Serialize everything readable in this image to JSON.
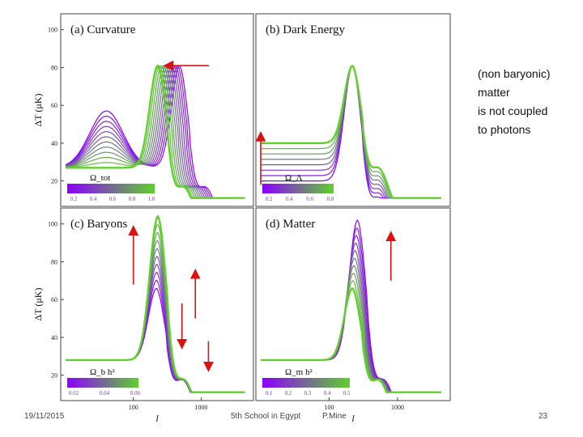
{
  "slide": {
    "note_lines": [
      "(non baryonic)",
      "matter",
      "is not coupled",
      "to photons"
    ],
    "footer_date": "19/11/2015",
    "footer_event": "5th School in Egypt",
    "footer_author": "P.Mine",
    "page_number": "23"
  },
  "colors": {
    "start": "#8b00ff",
    "end": "#5fd02c",
    "arrow": "#dd1111"
  },
  "chart_data": [
    {
      "type": "line",
      "panel": "top-left",
      "title": "(a) Curvature",
      "ylabel": "ΔT (μK)",
      "xlabel": "",
      "ylim": [
        10,
        105
      ],
      "xlim": [
        10,
        5000
      ],
      "yticks": [
        "20",
        "40",
        "60",
        "80",
        "100"
      ],
      "xticks": [],
      "colorbar_label": "Ω_tot",
      "colorbar_ticks": [
        "0.2",
        "0.4",
        "0.6",
        "0.8",
        "1.0"
      ],
      "series_count": 12,
      "arrows": [
        {
          "direction": "left",
          "from": [
            1300,
            81
          ],
          "to": [
            300,
            81
          ]
        }
      ],
      "curves": {
        "start": {
          "peak_l": 480,
          "peak_dT": 81,
          "low_l_dT": 56,
          "low_l_bump_l": 40
        },
        "end": {
          "peak_l": 230,
          "peak_dT": 81,
          "low_l_dT": 27,
          "low_l_bump_l": 40
        }
      }
    },
    {
      "type": "line",
      "panel": "top-right",
      "title": "(b) Dark Energy",
      "ylabel": "",
      "xlabel": "",
      "ylim": [
        10,
        105
      ],
      "xlim": [
        10,
        5000
      ],
      "yticks": [],
      "xticks": [],
      "colorbar_label": "Ω_Λ",
      "colorbar_ticks": [
        "0.2",
        "0.4",
        "0.6",
        "0.8"
      ],
      "series_count": 8,
      "arrows": [
        {
          "direction": "up",
          "from": [
            10,
            18
          ],
          "to": [
            10,
            45
          ]
        }
      ],
      "curves": {
        "start": {
          "peak_l": 220,
          "peak_dT": 81,
          "low_l_dT": 20
        },
        "end": {
          "peak_l": 220,
          "peak_dT": 81,
          "low_l_dT": 40
        }
      }
    },
    {
      "type": "line",
      "panel": "bottom-left",
      "title": "(c) Baryons",
      "ylabel": "ΔT (μK)",
      "xlabel": "l",
      "ylim": [
        10,
        105
      ],
      "xlim": [
        10,
        5000
      ],
      "yticks": [
        "20",
        "40",
        "60",
        "80",
        "100"
      ],
      "xticks": [
        "100",
        "1000"
      ],
      "colorbar_label": "Ω_b h²",
      "colorbar_ticks": [
        "0.02",
        "0.04",
        "0.06"
      ],
      "series_count": 10,
      "arrows": [
        {
          "direction": "up",
          "from": [
            100,
            68
          ],
          "to": [
            100,
            98
          ]
        },
        {
          "direction": "up",
          "from": [
            820,
            50
          ],
          "to": [
            820,
            75
          ]
        },
        {
          "direction": "down",
          "from": [
            520,
            58
          ],
          "to": [
            520,
            35
          ]
        },
        {
          "direction": "down",
          "from": [
            1280,
            38
          ],
          "to": [
            1280,
            23
          ]
        }
      ],
      "curves": {
        "start": {
          "peak_l": 220,
          "peak_dT": 66,
          "low_l_dT": 28
        },
        "end": {
          "peak_l": 230,
          "peak_dT": 104,
          "low_l_dT": 28
        }
      }
    },
    {
      "type": "line",
      "panel": "bottom-right",
      "title": "(d) Matter",
      "ylabel": "",
      "xlabel": "l",
      "ylim": [
        10,
        105
      ],
      "xlim": [
        10,
        5000
      ],
      "yticks": [],
      "xticks": [
        "100",
        "1000"
      ],
      "colorbar_label": "Ω_m h²",
      "colorbar_ticks": [
        "0.1",
        "0.2",
        "0.3",
        "0.4",
        "0.5"
      ],
      "series_count": 10,
      "arrows": [
        {
          "direction": "up",
          "from": [
            800,
            70
          ],
          "to": [
            800,
            95
          ]
        }
      ],
      "curves": {
        "start": {
          "peak_l": 260,
          "peak_dT": 102,
          "low_l_dT": 28
        },
        "end": {
          "peak_l": 220,
          "peak_dT": 66,
          "low_l_dT": 28
        }
      }
    }
  ]
}
